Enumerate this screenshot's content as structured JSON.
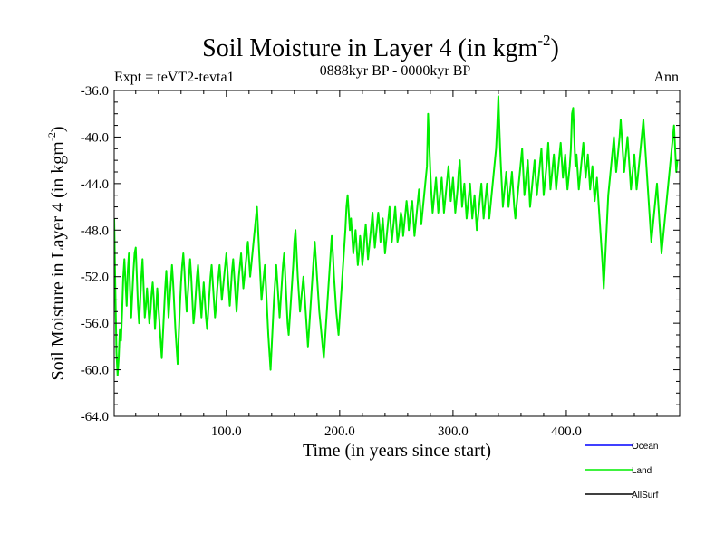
{
  "chart_data": {
    "type": "line",
    "title": "Soil Moisture in Layer 4 (in kgm",
    "title_superscript": "-2",
    "title_suffix": ")",
    "subtitle_left": "Expt = teVT2-tevta1",
    "subtitle_center": "0888kyr BP - 0000kyr BP",
    "subtitle_right": "Ann",
    "xlabel": "Time (in years since start)",
    "ylabel": "Soil Moisture in Layer 4 (in kgm",
    "ylabel_superscript": "-2",
    "ylabel_suffix": ")",
    "xlim": [
      1,
      500
    ],
    "ylim": [
      -64,
      -36
    ],
    "xticks": [
      {
        "value": 100,
        "label": "100.0"
      },
      {
        "value": 200,
        "label": "200.0"
      },
      {
        "value": 300,
        "label": "300.0"
      },
      {
        "value": 400,
        "label": "400.0"
      }
    ],
    "yticks": [
      {
        "value": -36,
        "label": "-36.0"
      },
      {
        "value": -40,
        "label": "-40.0"
      },
      {
        "value": -44,
        "label": "-44.0"
      },
      {
        "value": -48,
        "label": "-48.0"
      },
      {
        "value": -52,
        "label": "-52.0"
      },
      {
        "value": -56,
        "label": "-56.0"
      },
      {
        "value": -60,
        "label": "-60.0"
      },
      {
        "value": -64,
        "label": "-64.0"
      }
    ],
    "legend": [
      {
        "name": "Ocean",
        "color": "#0000ff"
      },
      {
        "name": "Land",
        "color": "#00ee00"
      },
      {
        "name": "AllSurf",
        "color": "#000000"
      }
    ],
    "series": [
      {
        "name": "Land",
        "color": "#00ee00",
        "x_start": 1,
        "x_step": 1,
        "values": [
          -47.0,
          -53.0,
          -58.5,
          -60.5,
          -59.0,
          -56.5,
          -57.5,
          -55.0,
          -52.0,
          -50.5,
          -52.5,
          -54.5,
          -51.5,
          -50.0,
          -53.0,
          -55.5,
          -53.5,
          -51.5,
          -50.0,
          -49.5,
          -52.0,
          -54.5,
          -56.0,
          -54.0,
          -52.0,
          -50.5,
          -53.0,
          -55.5,
          -54.5,
          -53.0,
          -54.5,
          -56.0,
          -55.0,
          -53.5,
          -52.5,
          -54.0,
          -56.5,
          -55.0,
          -53.0,
          -54.5,
          -56.0,
          -57.5,
          -59.0,
          -57.0,
          -55.0,
          -53.0,
          -51.5,
          -53.5,
          -55.5,
          -54.0,
          -52.5,
          -51.0,
          -52.5,
          -54.5,
          -56.5,
          -58.0,
          -59.5,
          -57.0,
          -54.5,
          -52.5,
          -51.0,
          -50.0,
          -51.5,
          -53.5,
          -55.0,
          -53.5,
          -52.0,
          -50.5,
          -52.0,
          -54.0,
          -56.0,
          -55.0,
          -53.5,
          -52.0,
          -51.0,
          -52.5,
          -54.0,
          -55.5,
          -54.0,
          -52.5,
          -54.0,
          -55.5,
          -56.5,
          -55.0,
          -53.5,
          -52.0,
          -51.0,
          -52.5,
          -54.0,
          -55.5,
          -54.5,
          -53.0,
          -52.0,
          -51.0,
          -52.5,
          -54.0,
          -53.0,
          -52.0,
          -51.0,
          -50.0,
          -51.5,
          -53.0,
          -54.5,
          -53.0,
          -51.5,
          -50.5,
          -52.0,
          -53.5,
          -55.0,
          -53.5,
          -52.0,
          -51.0,
          -50.0,
          -51.5,
          -53.0,
          -52.0,
          -51.0,
          -50.0,
          -49.0,
          -50.5,
          -52.0,
          -51.0,
          -50.0,
          -49.0,
          -48.0,
          -47.0,
          -46.0,
          -48.0,
          -50.0,
          -52.0,
          -54.0,
          -53.0,
          -52.0,
          -51.0,
          -53.0,
          -55.0,
          -57.0,
          -58.5,
          -60.0,
          -58.0,
          -56.0,
          -54.0,
          -52.5,
          -51.0,
          -52.5,
          -54.0,
          -55.5,
          -54.0,
          -52.5,
          -51.0,
          -50.0,
          -52.0,
          -54.0,
          -56.0,
          -57.0,
          -55.5,
          -54.0,
          -52.5,
          -51.0,
          -49.0,
          -48.0,
          -50.0,
          -52.0,
          -53.5,
          -55.0,
          -54.0,
          -53.0,
          -52.0,
          -53.5,
          -55.0,
          -56.5,
          -58.0,
          -56.5,
          -55.0,
          -53.5,
          -52.0,
          -50.5,
          -49.0,
          -50.5,
          -52.0,
          -53.5,
          -55.0,
          -56.0,
          -57.0,
          -58.0,
          -59.0,
          -57.5,
          -56.0,
          -54.5,
          -53.0,
          -51.5,
          -50.0,
          -48.5,
          -50.0,
          -52.0,
          -53.5,
          -55.0,
          -56.0,
          -57.0,
          -55.5,
          -54.0,
          -52.5,
          -51.0,
          -49.5,
          -48.0,
          -46.0,
          -45.0,
          -46.5,
          -48.0,
          -47.0,
          -48.5,
          -50.0,
          -49.0,
          -48.0,
          -49.5,
          -51.0,
          -50.0,
          -48.5,
          -49.5,
          -51.0,
          -50.0,
          -48.5,
          -47.5,
          -49.0,
          -50.5,
          -49.5,
          -48.5,
          -47.5,
          -46.5,
          -48.0,
          -49.5,
          -48.5,
          -47.5,
          -46.5,
          -47.5,
          -49.0,
          -48.0,
          -47.0,
          -48.5,
          -50.0,
          -49.0,
          -48.0,
          -47.0,
          -46.0,
          -47.5,
          -49.0,
          -48.0,
          -47.0,
          -46.0,
          -47.5,
          -49.0,
          -48.5,
          -47.5,
          -46.5,
          -47.0,
          -48.5,
          -47.5,
          -46.5,
          -45.5,
          -46.5,
          -48.0,
          -47.0,
          -46.0,
          -45.5,
          -47.0,
          -48.5,
          -47.5,
          -46.5,
          -45.5,
          -44.5,
          -46.0,
          -47.5,
          -46.5,
          -45.5,
          -44.5,
          -43.5,
          -42.5,
          -38.0,
          -40.5,
          -43.0,
          -45.0,
          -46.5,
          -45.5,
          -44.5,
          -43.5,
          -45.0,
          -46.5,
          -45.5,
          -44.5,
          -43.5,
          -45.0,
          -46.5,
          -45.5,
          -44.5,
          -43.5,
          -42.5,
          -44.0,
          -45.5,
          -44.5,
          -43.5,
          -45.0,
          -46.5,
          -45.5,
          -44.5,
          -43.0,
          -42.0,
          -44.0,
          -46.0,
          -45.0,
          -44.0,
          -45.5,
          -47.0,
          -46.0,
          -45.0,
          -44.0,
          -45.5,
          -47.0,
          -46.0,
          -45.0,
          -46.5,
          -48.0,
          -47.0,
          -46.0,
          -45.0,
          -44.0,
          -45.5,
          -47.0,
          -46.0,
          -45.0,
          -44.0,
          -45.5,
          -47.0,
          -46.0,
          -45.0,
          -44.0,
          -43.0,
          -42.0,
          -41.0,
          -39.0,
          -36.5,
          -39.5,
          -42.0,
          -44.0,
          -46.0,
          -45.0,
          -44.0,
          -43.0,
          -44.5,
          -46.0,
          -45.0,
          -44.0,
          -43.0,
          -44.5,
          -46.0,
          -47.0,
          -46.0,
          -45.0,
          -44.0,
          -43.0,
          -42.0,
          -41.0,
          -43.0,
          -45.0,
          -44.0,
          -43.0,
          -42.0,
          -44.0,
          -46.0,
          -45.0,
          -44.0,
          -43.0,
          -42.0,
          -43.5,
          -45.0,
          -44.0,
          -43.0,
          -42.0,
          -41.0,
          -43.0,
          -45.0,
          -44.0,
          -43.0,
          -42.0,
          -40.5,
          -42.5,
          -44.5,
          -43.5,
          -42.5,
          -41.5,
          -43.0,
          -44.5,
          -43.5,
          -42.5,
          -41.5,
          -40.5,
          -42.0,
          -43.5,
          -42.5,
          -41.5,
          -43.0,
          -44.5,
          -43.5,
          -42.5,
          -41.0,
          -38.0,
          -37.5,
          -40.0,
          -42.5,
          -41.5,
          -43.0,
          -44.5,
          -43.5,
          -42.5,
          -41.5,
          -40.5,
          -42.0,
          -43.5,
          -42.5,
          -41.5,
          -43.0,
          -44.5,
          -43.5,
          -42.5,
          -44.0,
          -45.5,
          -44.5,
          -43.5,
          -45.0,
          -46.5,
          -48.0,
          -49.5,
          -51.0,
          -53.0,
          -51.0,
          -49.0,
          -47.0,
          -45.0,
          -44.0,
          -43.0,
          -42.0,
          -41.0,
          -40.0,
          -41.5,
          -43.0,
          -42.0,
          -41.0,
          -40.0,
          -38.5,
          -40.0,
          -41.5,
          -43.0,
          -42.0,
          -41.0,
          -40.0,
          -41.5,
          -43.0,
          -44.5,
          -43.5,
          -42.5,
          -41.5,
          -43.0,
          -44.5,
          -43.5,
          -42.5,
          -41.5,
          -40.5,
          -39.5,
          -38.5,
          -40.0,
          -41.5,
          -43.0,
          -44.5,
          -46.0,
          -47.5,
          -49.0,
          -48.0,
          -47.0,
          -46.0,
          -45.0,
          -44.0,
          -45.5,
          -47.0,
          -48.5,
          -50.0,
          -49.0,
          -48.0,
          -47.0,
          -46.0,
          -45.0,
          -44.0,
          -43.0,
          -42.0,
          -41.0,
          -40.0,
          -39.0,
          -41.0,
          -43.0,
          -42.0
        ]
      },
      {
        "name": "Ocean",
        "color": "#0000ff",
        "values": []
      },
      {
        "name": "AllSurf",
        "color": "#000000",
        "values": []
      }
    ]
  }
}
